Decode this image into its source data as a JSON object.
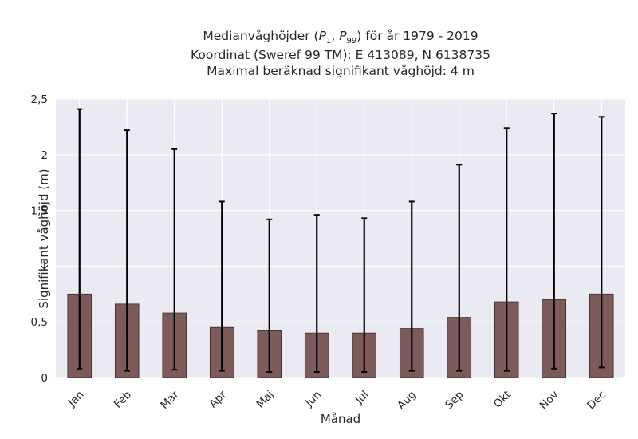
{
  "chart_data": {
    "type": "bar",
    "title_lines": [
      "Medianvåghöjder (P1, P99) för år 1979 - 2019",
      "Koordinat (Sweref 99 TM): E 413089, N 6138735",
      "Maximal beräknad signifikant våghöjd: 4 m"
    ],
    "xlabel": "Månad",
    "ylabel": "Signifikant våghöjd (m)",
    "categories": [
      "Jan",
      "Feb",
      "Mar",
      "Apr",
      "Maj",
      "Jun",
      "Jul",
      "Aug",
      "Sep",
      "Okt",
      "Nov",
      "Dec"
    ],
    "values": [
      0.75,
      0.66,
      0.58,
      0.45,
      0.42,
      0.4,
      0.4,
      0.44,
      0.54,
      0.68,
      0.7,
      0.75
    ],
    "p1": [
      0.08,
      0.06,
      0.07,
      0.06,
      0.05,
      0.05,
      0.05,
      0.06,
      0.06,
      0.06,
      0.08,
      0.09
    ],
    "p99": [
      2.41,
      2.22,
      2.05,
      1.58,
      1.42,
      1.46,
      1.43,
      1.58,
      1.91,
      2.24,
      2.37,
      2.34
    ],
    "ylim": [
      0,
      2.5
    ],
    "yticks": [
      0,
      0.5,
      1,
      1.5,
      2,
      2.5
    ],
    "ytick_labels": [
      "0",
      "0,5",
      "1",
      "1,5",
      "2",
      "2,5"
    ],
    "grid": true,
    "colors": {
      "bar": "#7e5b5b",
      "bar_edge": "#3a2a2a",
      "plot_bg": "#eaeaf2",
      "grid": "#ffffff",
      "errorbar": "#000000"
    }
  }
}
